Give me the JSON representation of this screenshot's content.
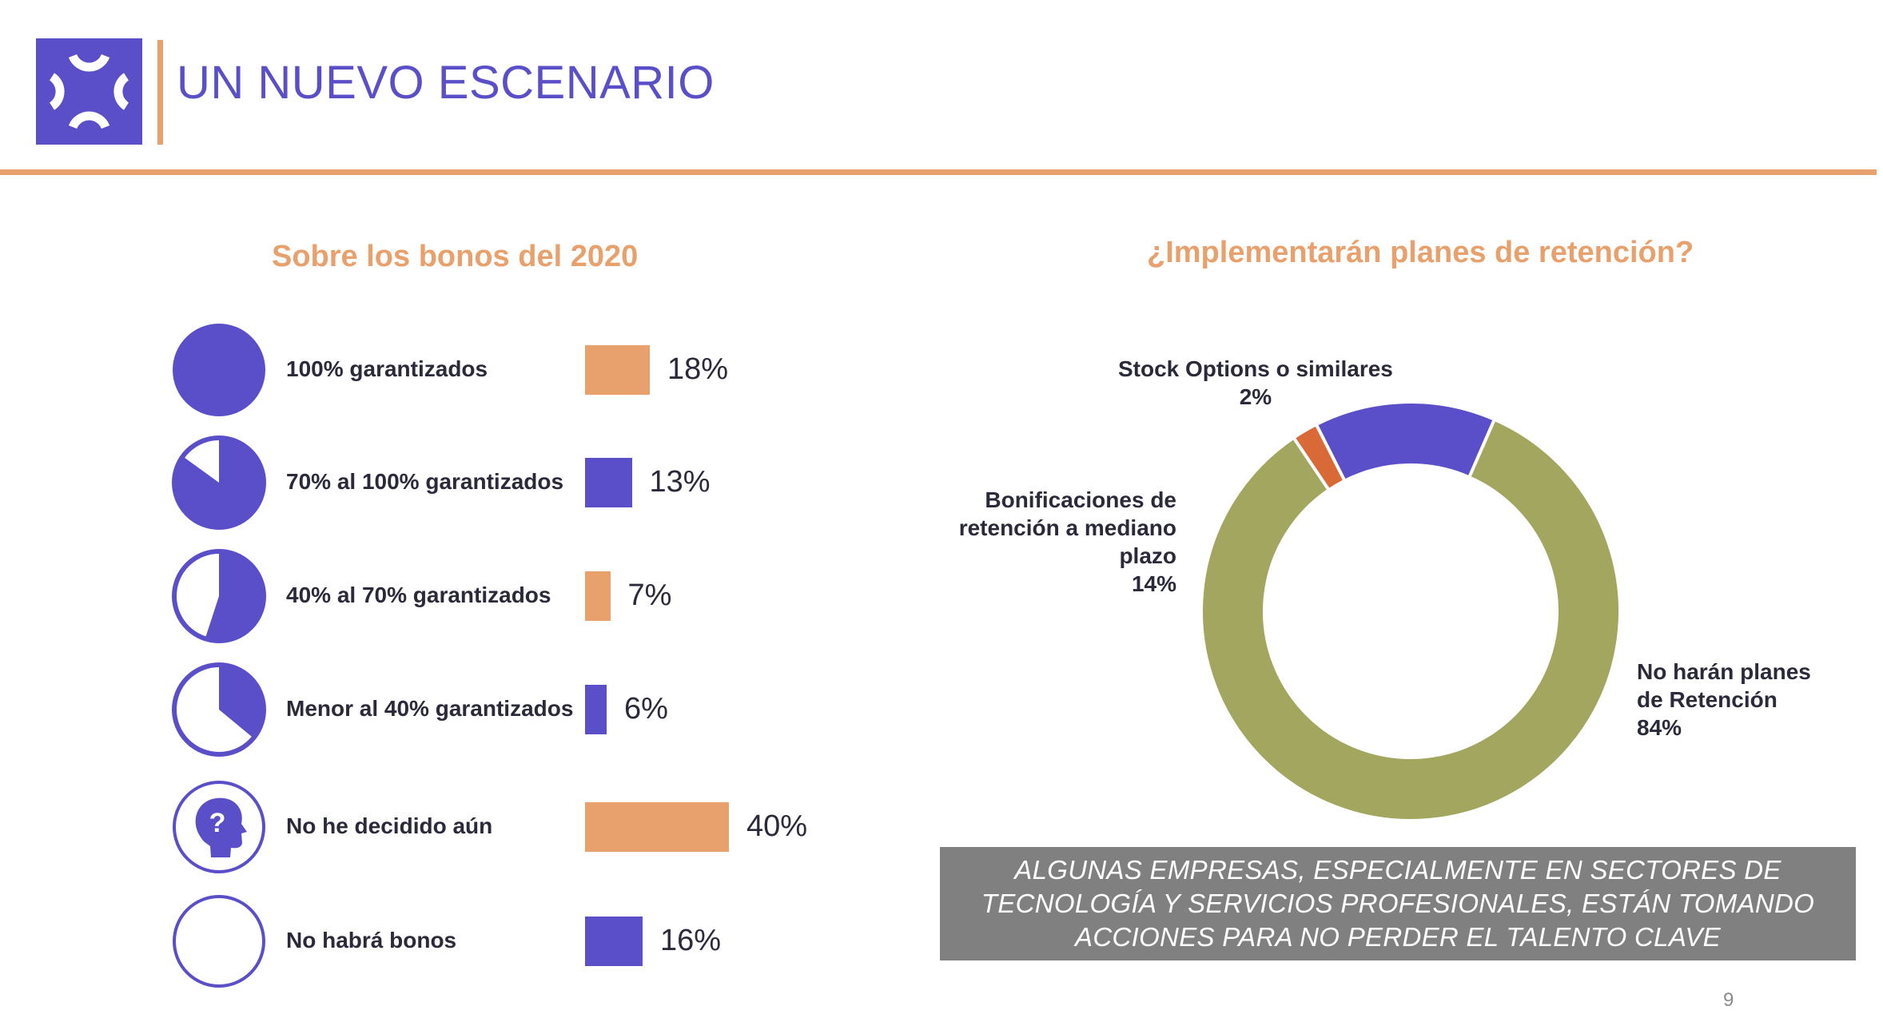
{
  "header": {
    "title": "UN NUEVO ESCENARIO",
    "logo_icon": "brackets-logo-icon",
    "accent_color": "#e8a06c",
    "brand_color": "#5a4fc8"
  },
  "bonus_section": {
    "title": "Sobre los bonos del 2020",
    "items": [
      {
        "label": "100% garantizados",
        "value_label": "18%",
        "icon": "full-circle-icon"
      },
      {
        "label": "70% al 100% garantizados",
        "value_label": "13%",
        "icon": "pie-85-icon"
      },
      {
        "label": "40% al 70% garantizados",
        "value_label": "7%",
        "icon": "pie-55-icon"
      },
      {
        "label": "Menor al 40% garantizados",
        "value_label": "6%",
        "icon": "pie-35-icon"
      },
      {
        "label": "No he decidido aún",
        "value_label": "40%",
        "icon": "head-question-icon"
      },
      {
        "label": "No habrá bonos",
        "value_label": "16%",
        "icon": "empty-circle-icon"
      }
    ]
  },
  "retention_section": {
    "title": "¿Implementarán planes de retención?",
    "labels": {
      "stock": {
        "name": "Stock Options o similares",
        "pct": "2%"
      },
      "bonif": {
        "line1": "Bonificaciones de",
        "line2": "retención a mediano",
        "line3": "plazo",
        "pct": "14%"
      },
      "none": {
        "line1": "No harán planes",
        "line2": "de Retención",
        "pct": "84%"
      }
    }
  },
  "note": {
    "text": "ALGUNAS EMPRESAS, ESPECIALMENTE EN SECTORES DE TECNOLOGÍA Y SERVICIOS PROFESIONALES, ESTÁN TOMANDO ACCIONES PARA NO PERDER EL TALENTO CLAVE"
  },
  "page_number": "9",
  "chart_data": [
    {
      "type": "bar",
      "title": "Sobre los bonos del 2020",
      "categories": [
        "100% garantizados",
        "70% al 100% garantizados",
        "40% al 70% garantizados",
        "Menor al 40% garantizados",
        "No he decidido aún",
        "No habrá bonos"
      ],
      "values": [
        18,
        13,
        7,
        6,
        40,
        16
      ],
      "colors": [
        "#e8a06c",
        "#5a4fc8",
        "#e8a06c",
        "#5a4fc8",
        "#e8a06c",
        "#5a4fc8"
      ],
      "orientation": "horizontal",
      "xlim": [
        0,
        40
      ]
    },
    {
      "type": "pie",
      "title": "¿Implementarán planes de retención?",
      "donut": true,
      "categories": [
        "Stock Options o similares",
        "Bonificaciones de retención a mediano plazo",
        "No harán planes de Retención"
      ],
      "values": [
        2,
        14,
        84
      ],
      "colors": [
        "#d96a38",
        "#5a4fc8",
        "#a3a65f"
      ]
    }
  ]
}
